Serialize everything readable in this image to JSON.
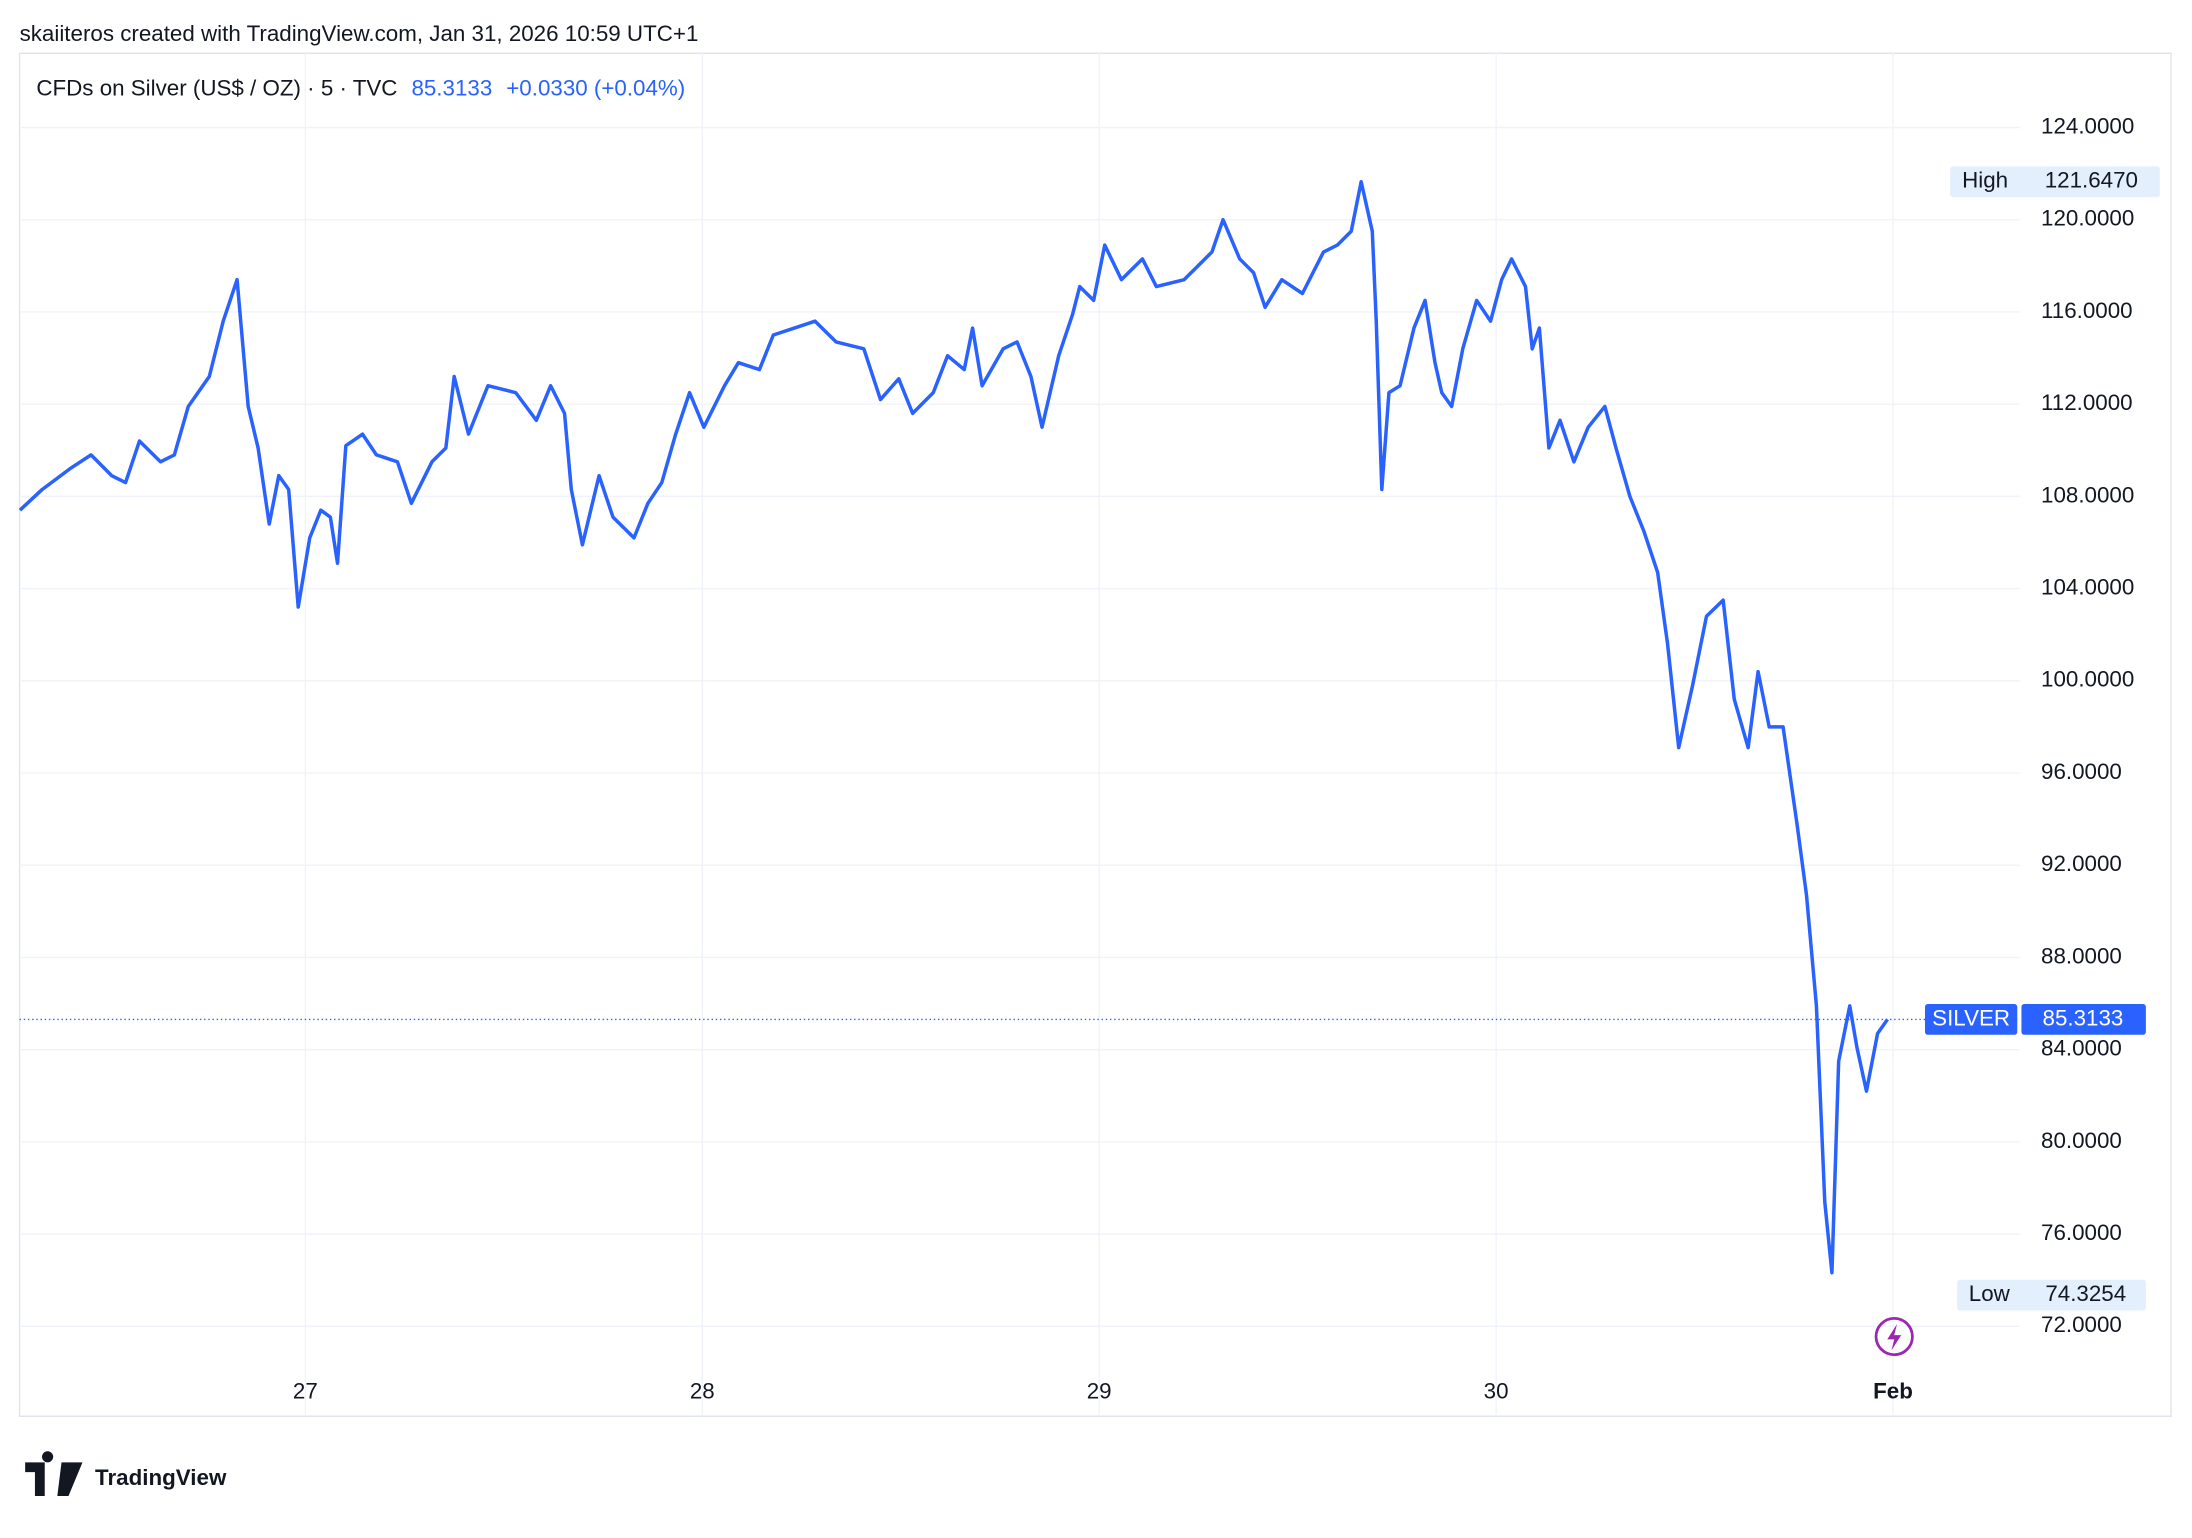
{
  "chart_data": {
    "type": "line",
    "attribution": "skaiiteros created with TradingView.com, Jan 31, 2026 10:59 UTC+1",
    "symbol": "CFDs on Silver (US$ / OZ) · 5 · TVC",
    "change_text": "+0.0330 (+0.04%)",
    "brand": "TradingView",
    "last_value": 85.3133,
    "high": {
      "label": "High",
      "value": 121.647,
      "value_label": "121.6470"
    },
    "low": {
      "label": "Low",
      "value": 74.3254
    },
    "x": [
      26.281,
      26.337,
      26.407,
      26.46,
      26.512,
      26.547,
      26.582,
      26.635,
      26.67,
      26.705,
      26.758,
      26.793,
      26.828,
      26.856,
      26.881,
      26.909,
      26.933,
      26.958,
      26.982,
      27.011,
      27.039,
      27.063,
      27.081,
      27.102,
      27.144,
      27.179,
      27.232,
      27.267,
      27.319,
      27.354,
      27.375,
      27.411,
      27.46,
      27.53,
      27.582,
      27.618,
      27.653,
      27.67,
      27.698,
      27.74,
      27.775,
      27.828,
      27.863,
      27.898,
      27.933,
      27.968,
      28.004,
      28.056,
      28.091,
      28.144,
      28.179,
      28.232,
      28.284,
      28.337,
      28.407,
      28.449,
      28.495,
      28.53,
      28.582,
      28.618,
      28.66,
      28.681,
      28.705,
      28.758,
      28.793,
      28.828,
      28.856,
      28.898,
      28.933,
      28.951,
      28.986,
      29.014,
      29.056,
      29.109,
      29.144,
      29.214,
      29.249,
      29.284,
      29.312,
      29.354,
      29.389,
      29.418,
      29.46,
      29.512,
      29.565,
      29.6,
      29.635,
      29.66,
      29.688,
      29.698,
      29.712,
      29.73,
      29.758,
      29.793,
      29.821,
      29.846,
      29.863,
      29.888,
      29.916,
      29.951,
      29.986,
      30.014,
      30.039,
      30.074,
      30.091,
      30.109,
      30.133,
      30.161,
      30.196,
      30.232,
      30.274,
      30.302,
      30.337,
      30.372,
      30.407,
      30.432,
      30.46,
      30.495,
      30.53,
      30.572,
      30.6,
      30.635,
      30.66,
      30.688,
      30.723,
      30.758,
      30.782,
      30.807,
      30.828,
      30.846,
      30.863,
      30.891,
      30.909,
      30.933,
      30.961,
      30.986
    ],
    "series": [
      {
        "name": "SILVER",
        "color": "#2962ff",
        "value_label_last": "85.3133",
        "values": [
          107.4,
          108.3,
          109.2,
          109.8,
          108.9,
          108.6,
          110.4,
          109.5,
          109.8,
          111.9,
          113.2,
          115.6,
          117.4,
          111.9,
          110.1,
          106.8,
          108.9,
          108.3,
          103.2,
          106.2,
          107.4,
          107.1,
          105.1,
          110.2,
          110.7,
          109.8,
          109.5,
          107.7,
          109.5,
          110.1,
          113.2,
          110.7,
          112.8,
          112.5,
          111.3,
          112.8,
          111.6,
          108.3,
          105.9,
          108.9,
          107.1,
          106.2,
          107.7,
          108.6,
          110.7,
          112.5,
          111.0,
          112.8,
          113.8,
          113.5,
          115.0,
          115.3,
          115.6,
          114.7,
          114.4,
          112.2,
          113.1,
          111.6,
          112.5,
          114.1,
          113.5,
          115.3,
          112.8,
          114.4,
          114.7,
          113.2,
          111.0,
          114.1,
          115.9,
          117.1,
          116.5,
          118.9,
          117.4,
          118.3,
          117.1,
          117.4,
          118.0,
          118.6,
          120.0,
          118.3,
          117.7,
          116.2,
          117.4,
          116.8,
          118.6,
          118.9,
          119.5,
          121.647,
          119.5,
          115.6,
          108.3,
          112.5,
          112.8,
          115.3,
          116.5,
          113.8,
          112.5,
          111.9,
          114.4,
          116.5,
          115.6,
          117.4,
          118.3,
          117.1,
          114.4,
          115.3,
          110.1,
          111.3,
          109.5,
          111.0,
          111.9,
          110.1,
          108.0,
          106.5,
          104.7,
          101.6,
          97.1,
          99.8,
          102.8,
          103.5,
          99.2,
          97.1,
          100.4,
          98.0,
          98.0,
          93.8,
          90.7,
          85.9,
          77.4,
          74.3254,
          83.5,
          85.9,
          84.1,
          82.2,
          84.7,
          85.3133
        ]
      }
    ],
    "xlim": [
      26.28,
      31.32
    ],
    "xticks": [
      27,
      28,
      29,
      30,
      {
        "value": 31,
        "label": "Feb"
      }
    ],
    "ylim": [
      68.1,
      127.1
    ],
    "yticks": [
      {
        "value": 72,
        "label": "72.0000"
      },
      {
        "value": 76,
        "label": "76.0000"
      },
      {
        "value": 80,
        "label": "80.0000"
      },
      {
        "value": 84,
        "label": "84.0000"
      },
      {
        "value": 88,
        "label": "88.0000"
      },
      {
        "value": 92,
        "label": "92.0000"
      },
      {
        "value": 96,
        "label": "96.0000"
      },
      {
        "value": 100,
        "label": "100.0000"
      },
      {
        "value": 104,
        "label": "104.0000"
      },
      {
        "value": 108,
        "label": "108.0000"
      },
      {
        "value": 112,
        "label": "112.0000"
      },
      {
        "value": 116,
        "label": "116.0000"
      },
      {
        "value": 120,
        "label": "120.0000"
      },
      {
        "value": 124,
        "label": "124.0000"
      }
    ],
    "grid": true
  }
}
